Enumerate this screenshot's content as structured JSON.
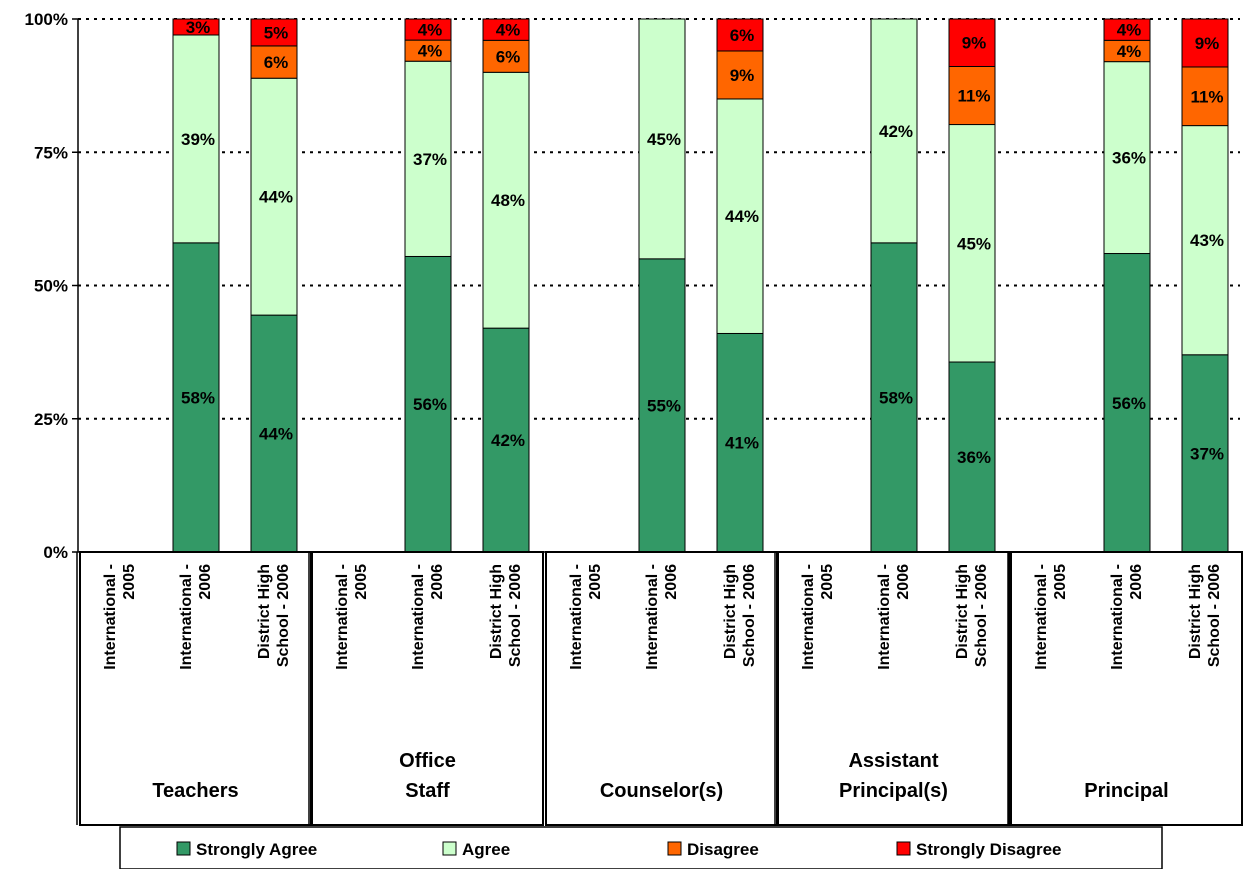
{
  "chart_data": {
    "type": "bar",
    "stacked": true,
    "y_axis": {
      "min": 0,
      "max": 100,
      "ticks": [
        0,
        25,
        50,
        75,
        100
      ],
      "tick_labels": [
        "0%",
        "25%",
        "50%",
        "75%",
        "100%"
      ],
      "gridlines": "dotted"
    },
    "sub_categories": [
      [
        "International -",
        "2005"
      ],
      [
        "International -",
        "2006"
      ],
      [
        "District High",
        "School - 2006"
      ]
    ],
    "groups": [
      {
        "label": [
          "Teachers"
        ],
        "bars": [
          null,
          [
            58,
            39,
            0,
            3
          ],
          [
            44,
            44,
            6,
            5
          ]
        ]
      },
      {
        "label": [
          "Office",
          "Staff"
        ],
        "bars": [
          null,
          [
            56,
            37,
            4,
            4
          ],
          [
            42,
            48,
            6,
            4
          ]
        ]
      },
      {
        "label": [
          "Counselor(s)"
        ],
        "bars": [
          null,
          [
            55,
            45,
            0,
            0
          ],
          [
            41,
            44,
            9,
            6
          ]
        ]
      },
      {
        "label": [
          "Assistant",
          "Principal(s)"
        ],
        "bars": [
          null,
          [
            58,
            42,
            0,
            0
          ],
          [
            36,
            45,
            11,
            9
          ]
        ]
      },
      {
        "label": [
          "Principal"
        ],
        "bars": [
          null,
          [
            56,
            36,
            4,
            4
          ],
          [
            37,
            43,
            11,
            9
          ]
        ]
      }
    ],
    "series": [
      {
        "name": "Strongly Agree",
        "color": "#339966"
      },
      {
        "name": "Agree",
        "color": "#CCFFCC"
      },
      {
        "name": "Disagree",
        "color": "#FF6600"
      },
      {
        "name": "Strongly Disagree",
        "color": "#FF0000"
      }
    ],
    "legend_position": "bottom"
  }
}
